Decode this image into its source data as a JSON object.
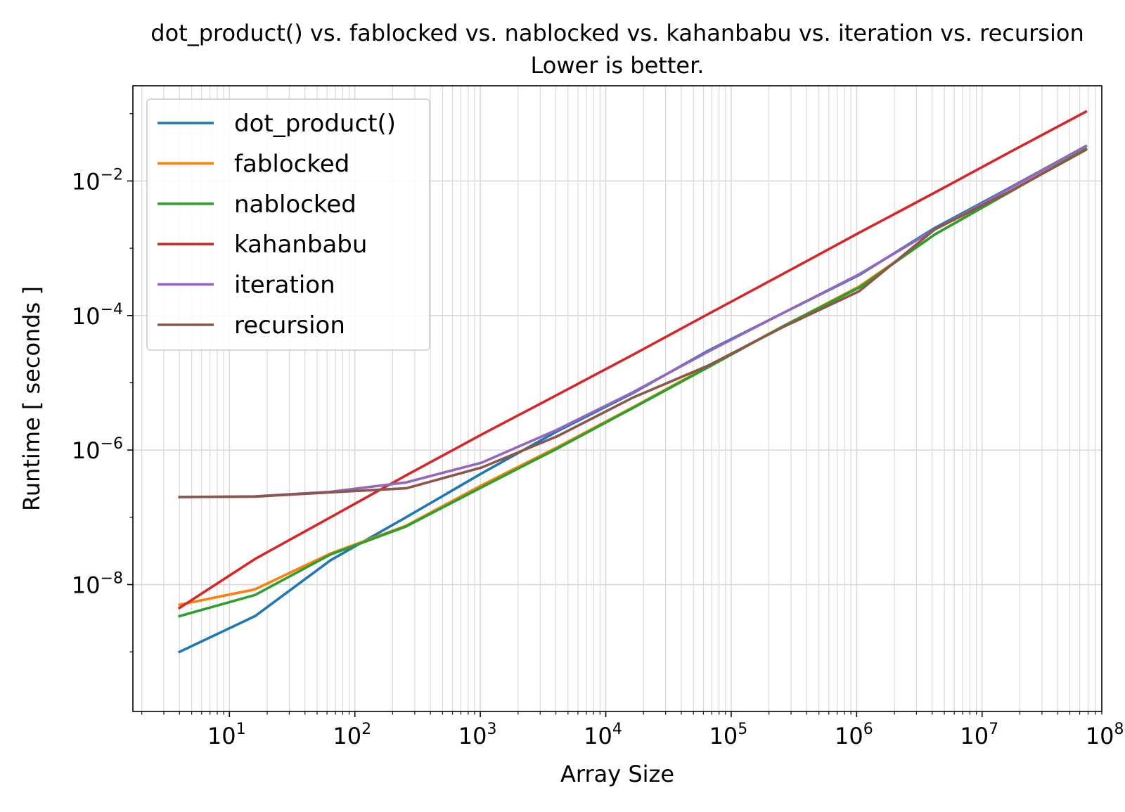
{
  "chart_data": {
    "type": "line",
    "title": "dot_product() vs. fablocked vs. nablocked vs. kahanbabu vs. iteration vs. recursion",
    "subtitle": "Lower is better.",
    "xlabel": "Array Size",
    "ylabel": "Runtime [ seconds ]",
    "xscale": "log",
    "yscale": "log",
    "xlim": [
      1.7,
      90000000
    ],
    "ylim": [
      1.3e-10,
      0.26
    ],
    "grid": true,
    "legend_position": "top-left",
    "x_ticks": [
      {
        "base": "10",
        "exp": "1"
      },
      {
        "base": "10",
        "exp": "2"
      },
      {
        "base": "10",
        "exp": "3"
      },
      {
        "base": "10",
        "exp": "4"
      },
      {
        "base": "10",
        "exp": "5"
      },
      {
        "base": "10",
        "exp": "6"
      },
      {
        "base": "10",
        "exp": "7"
      },
      {
        "base": "10",
        "exp": "8"
      }
    ],
    "y_ticks": [
      {
        "base": "10",
        "exp": "−8"
      },
      {
        "base": "10",
        "exp": "−6"
      },
      {
        "base": "10",
        "exp": "−4"
      },
      {
        "base": "10",
        "exp": "−2"
      }
    ],
    "x": [
      4,
      16,
      64,
      256,
      1024,
      4096,
      16384,
      65536,
      262144,
      1048576,
      4194304,
      16777216,
      67108864
    ],
    "series": [
      {
        "name": "dot_product()",
        "color": "#1f77b4",
        "values": [
          1e-09,
          3.4e-09,
          2.3e-08,
          1e-07,
          4.5e-07,
          1.9e-06,
          7e-06,
          3e-05,
          0.00011,
          0.0004,
          0.002,
          0.008,
          0.033
        ]
      },
      {
        "name": "fablocked",
        "color": "#ff7f0e",
        "values": [
          5e-09,
          8.5e-09,
          2.9e-08,
          7.5e-08,
          3e-07,
          1.1e-06,
          4.3e-06,
          1.75e-05,
          7e-05,
          0.00027,
          0.0016,
          0.007,
          0.03
        ]
      },
      {
        "name": "nablocked",
        "color": "#2ca02c",
        "values": [
          3.4e-09,
          7e-09,
          2.8e-08,
          7.3e-08,
          2.8e-07,
          1.05e-06,
          4.2e-06,
          1.7e-05,
          7e-05,
          0.00026,
          0.0016,
          0.0069,
          0.03
        ]
      },
      {
        "name": "kahanbabu",
        "color": "#d62728",
        "values": [
          4.5e-09,
          2.4e-08,
          1e-07,
          4.2e-07,
          1.7e-06,
          6.6e-06,
          2.6e-05,
          0.000105,
          0.00042,
          0.0017,
          0.0067,
          0.027,
          0.107
        ]
      },
      {
        "name": "iteration",
        "color": "#9467bd",
        "values": [
          2e-07,
          2.05e-07,
          2.4e-07,
          3.3e-07,
          6.5e-07,
          2e-06,
          7.2e-06,
          2.9e-05,
          0.00011,
          0.00041,
          0.0019,
          0.0078,
          0.033
        ]
      },
      {
        "name": "recursion",
        "color": "#8c564b",
        "values": [
          2e-07,
          2.03e-07,
          2.35e-07,
          2.7e-07,
          5.5e-07,
          1.6e-06,
          6e-06,
          1.8e-05,
          6.8e-05,
          0.00023,
          0.0019,
          0.007,
          0.029
        ]
      }
    ]
  }
}
